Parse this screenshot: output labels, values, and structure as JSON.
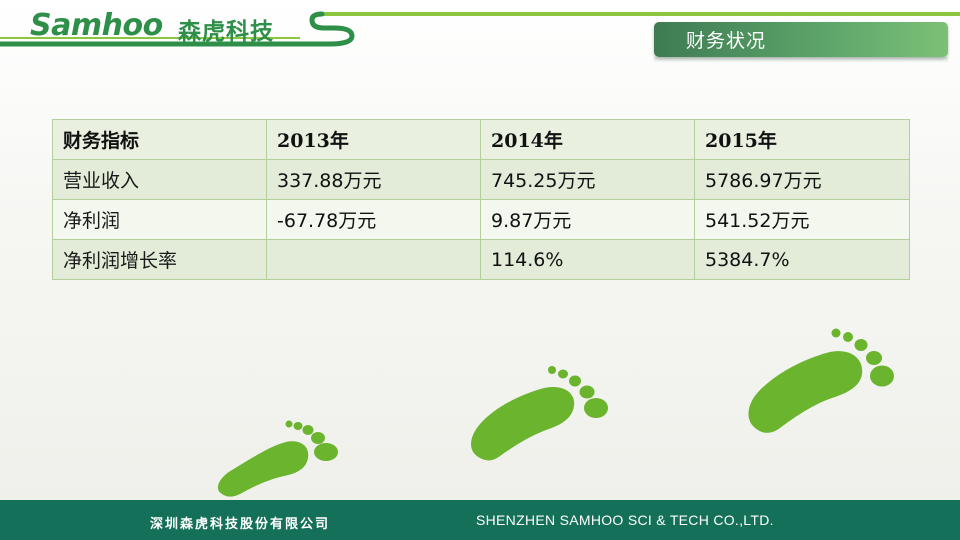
{
  "header": {
    "logo_en": "Samhoo",
    "logo_cn": "森虎科技",
    "title": "财务状况"
  },
  "table": {
    "columns": [
      "财务指标",
      "2013年",
      "2014年",
      "2015年"
    ],
    "rows": [
      [
        "营业收入",
        "337.88万元",
        "745.25万元",
        "5786.97万元"
      ],
      [
        "净利润",
        "-67.78万元",
        "9.87万元",
        "541.52万元"
      ],
      [
        "净利润增长率",
        "",
        "114.6%",
        "5384.7%"
      ]
    ]
  },
  "footer": {
    "company_cn": "深圳森虎科技股份有限公司",
    "company_en": "SHENZHEN SAMHOO SCI & TECH CO.,LTD."
  },
  "colors": {
    "brand_green": "#2e8f49",
    "footprint_green": "#6ab42e",
    "footer_bg": "#15705a"
  }
}
